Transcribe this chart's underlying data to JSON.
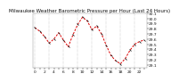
{
  "title": "Milwaukee Weather Barometric Pressure per Hour (Last 24 Hours)",
  "hours": [
    0,
    1,
    2,
    3,
    4,
    5,
    6,
    7,
    8,
    9,
    10,
    11,
    12,
    13,
    14,
    15,
    16,
    17,
    18,
    19,
    20,
    21,
    22,
    23
  ],
  "pressure": [
    29.82,
    29.75,
    29.65,
    29.52,
    29.6,
    29.72,
    29.58,
    29.45,
    29.68,
    29.88,
    30.02,
    29.95,
    29.78,
    29.85,
    29.7,
    29.48,
    29.28,
    29.18,
    29.12,
    29.22,
    29.38,
    29.5,
    29.55,
    29.58
  ],
  "ylim_min": 29.05,
  "ylim_max": 30.1,
  "ytick_values": [
    29.1,
    29.2,
    29.3,
    29.4,
    29.5,
    29.6,
    29.7,
    29.8,
    29.9,
    30.0,
    30.1
  ],
  "ytick_labels": [
    "9.1",
    "9.2",
    "9.3",
    "9.4",
    "9.5",
    "9.6",
    "9.7",
    "9.8",
    "9.9",
    "0.0",
    "0.1"
  ],
  "line_color": "#dd0000",
  "marker_color": "#111111",
  "bg_color": "#ffffff",
  "grid_color": "#999999",
  "title_fontsize": 4.0,
  "tick_fontsize": 3.2,
  "line_width": 0.7,
  "marker_size": 2.0,
  "grid_interval": 3
}
